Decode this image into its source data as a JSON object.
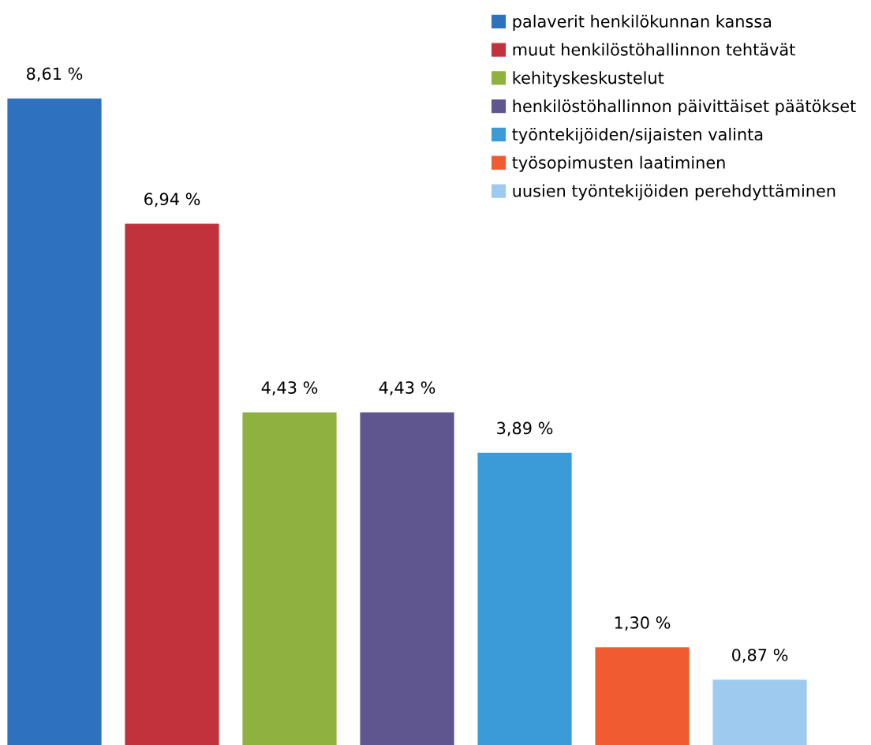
{
  "chart_data": {
    "type": "bar",
    "stacked": true,
    "categories": [
      null,
      null,
      null,
      null,
      null,
      null,
      null
    ],
    "ylim": [
      0,
      9.92
    ],
    "legend": "top right",
    "series": [
      {
        "name": "palaverit henkilökunnan kanssa",
        "color": "#2e72bd",
        "values": [
          8.61,
          null,
          null,
          null,
          null,
          null,
          null
        ],
        "value_labels": [
          "8,61 %",
          null,
          null,
          null,
          null,
          null,
          null
        ]
      },
      {
        "name": "muut henkilöstöhallinnon tehtävät",
        "color": "#c2323c",
        "values": [
          null,
          6.94,
          null,
          null,
          null,
          null,
          null
        ],
        "value_labels": [
          null,
          "6,94 %",
          null,
          null,
          null,
          null,
          null
        ]
      },
      {
        "name": "kehityskeskustelut",
        "color": "#8fb13f",
        "values": [
          null,
          null,
          4.43,
          null,
          null,
          null,
          null
        ],
        "value_labels": [
          null,
          null,
          "4,43 %",
          null,
          null,
          null,
          null
        ]
      },
      {
        "name": "henkilöstöhallinnon päivittäiset päätökset",
        "color": "#5f568f",
        "values": [
          null,
          null,
          null,
          4.43,
          null,
          null,
          null
        ],
        "value_labels": [
          null,
          null,
          null,
          "4,43 %",
          null,
          null,
          null
        ]
      },
      {
        "name": "työntekijöiden/sijaisten valinta",
        "color": "#3b9bd8",
        "values": [
          null,
          null,
          null,
          null,
          3.89,
          null,
          null
        ],
        "value_labels": [
          null,
          null,
          null,
          null,
          "3,89 %",
          null,
          null
        ]
      },
      {
        "name": "työsopimusten laatiminen",
        "color": "#f15b32",
        "values": [
          null,
          null,
          null,
          null,
          null,
          1.3,
          null
        ],
        "value_labels": [
          null,
          null,
          null,
          null,
          null,
          "1,30 %",
          null
        ]
      },
      {
        "name": "uusien työntekijöiden perehdyttäminen",
        "color": "#9ecaf0",
        "values": [
          null,
          null,
          null,
          null,
          null,
          null,
          0.87
        ],
        "value_labels": [
          null,
          null,
          null,
          null,
          null,
          null,
          "0,87 %"
        ]
      }
    ]
  }
}
